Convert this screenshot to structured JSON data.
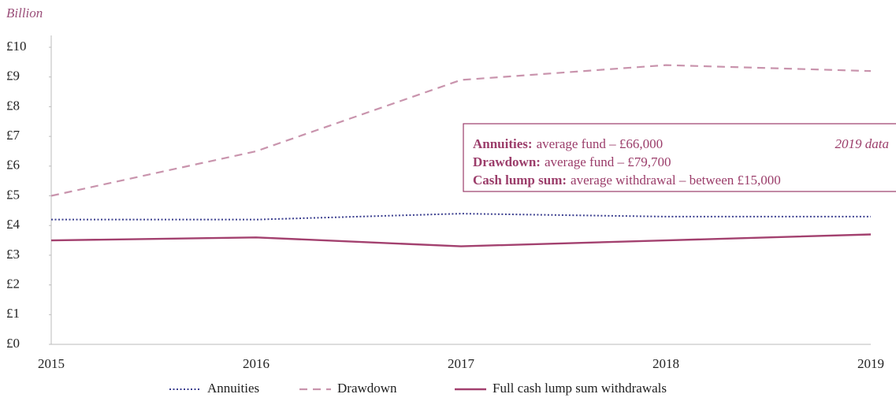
{
  "chart_data": {
    "type": "line",
    "y_label": "Billion",
    "categories": [
      "2015",
      "2016",
      "2017",
      "2018",
      "2019"
    ],
    "series": [
      {
        "name": "Annuities",
        "color": "#3b3f8f",
        "linestyle": "dotted",
        "values": [
          4.2,
          4.2,
          4.4,
          4.3,
          4.3
        ]
      },
      {
        "name": "Drawdown",
        "color": "#c994ad",
        "linestyle": "dashed",
        "values": [
          5.0,
          6.5,
          8.9,
          9.4,
          9.2
        ]
      },
      {
        "name": "Full cash lump sum withdrawals",
        "color": "#a3416f",
        "linestyle": "solid",
        "values": [
          3.5,
          3.6,
          3.3,
          3.5,
          3.7
        ]
      }
    ],
    "ylim": [
      0,
      10
    ],
    "yticks": [
      {
        "value": 0,
        "label": "£0"
      },
      {
        "value": 1,
        "label": "£1"
      },
      {
        "value": 2,
        "label": "£2"
      },
      {
        "value": 3,
        "label": "£3"
      },
      {
        "value": 4,
        "label": "£4"
      },
      {
        "value": 5,
        "label": "£5"
      },
      {
        "value": 6,
        "label": "£6"
      },
      {
        "value": 7,
        "label": "£7"
      },
      {
        "value": 8,
        "label": "£8"
      },
      {
        "value": 9,
        "label": "£9"
      },
      {
        "value": 10,
        "label": "£10"
      }
    ],
    "grid": false,
    "legend": "bottom",
    "annotation": {
      "note": "2019 data",
      "lines": [
        {
          "bold": "Annuities:",
          "text": "average fund –  £66,000"
        },
        {
          "bold": "Drawdown:",
          "text": "average fund – £79,700"
        },
        {
          "bold": "Cash lump sum:",
          "text": "average withdrawal – between £15,000"
        }
      ]
    }
  }
}
